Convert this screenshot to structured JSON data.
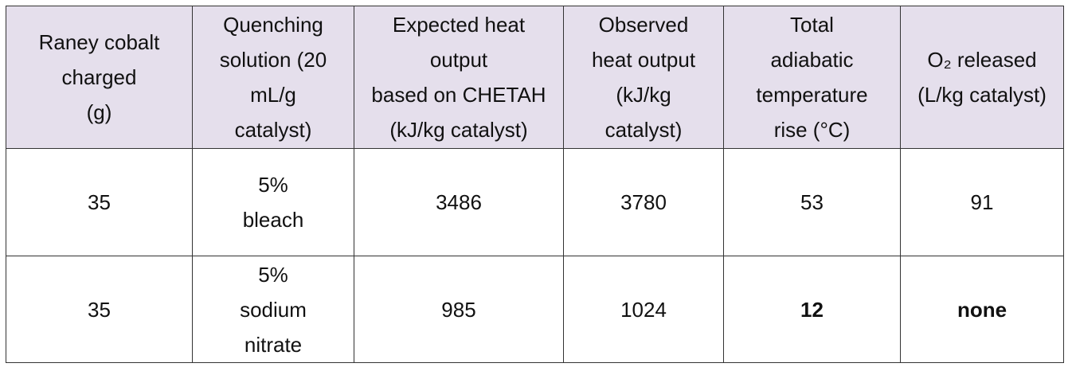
{
  "table": {
    "header": [
      [
        "Raney cobalt",
        "charged",
        "(g)"
      ],
      [
        "Quenching",
        "solution (20",
        "mL/g",
        "catalyst)"
      ],
      [
        "Expected heat",
        "output",
        "based on CHETAH",
        "(kJ/kg catalyst)"
      ],
      [
        "Observed",
        "heat output",
        "(kJ/kg",
        "catalyst)"
      ],
      [
        "Total",
        "adiabatic",
        "temperature",
        "rise (°C)"
      ],
      [
        "O₂ released",
        "(L/kg catalyst)"
      ]
    ],
    "rows": [
      [
        35,
        [
          "5%",
          "bleach"
        ],
        3486,
        3780,
        53,
        91
      ],
      [
        35,
        [
          "5%",
          "sodium",
          "nitrate"
        ],
        985,
        1024,
        12,
        "none"
      ]
    ]
  }
}
